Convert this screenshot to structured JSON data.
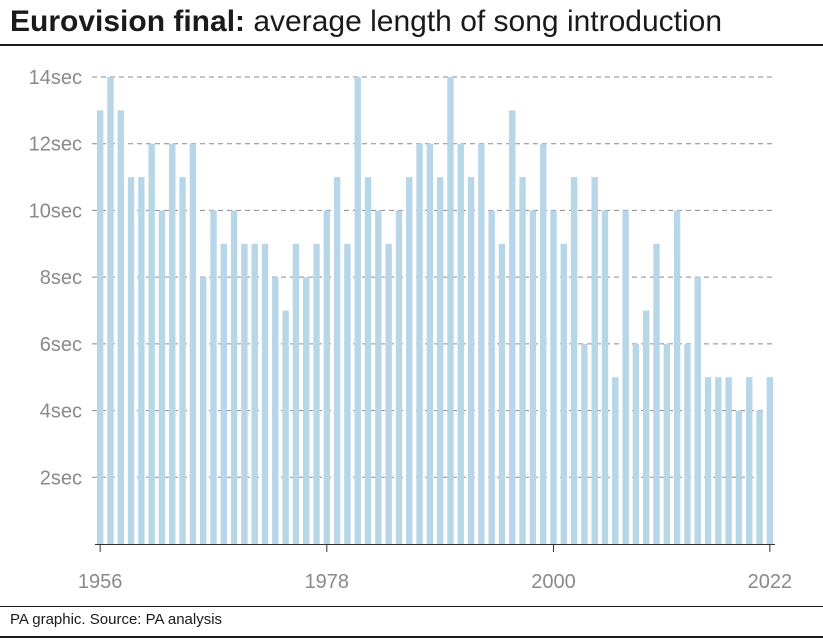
{
  "title": {
    "bold": "Eurovision final:",
    "rest": "average length of song introduction"
  },
  "footer": "PA graphic. Source: PA analysis",
  "colors": {
    "bar": "#b7d6e8",
    "grid": "#8a8a8a",
    "axis": "#333333",
    "tick_label": "#8a8a8a"
  },
  "chart_data": {
    "type": "bar",
    "title": "Eurovision final: average length of song introduction",
    "xlabel": "",
    "ylabel": "",
    "ylim": [
      0,
      14
    ],
    "y_ticks": [
      2,
      4,
      6,
      8,
      10,
      12,
      14
    ],
    "y_tick_labels": [
      "2sec",
      "4sec",
      "6sec",
      "8sec",
      "10sec",
      "12sec",
      "14sec"
    ],
    "x_tick_labels": [
      "1956",
      "1978",
      "2000",
      "2022"
    ],
    "grid": "dashed horizontal",
    "categories": [
      "1956",
      "1957",
      "1958",
      "1959",
      "1960",
      "1961",
      "1962",
      "1963",
      "1964",
      "1965",
      "1966",
      "1967",
      "1968",
      "1969",
      "1970",
      "1971",
      "1972",
      "1973",
      "1974",
      "1975",
      "1976",
      "1977",
      "1978",
      "1979",
      "1980",
      "1981",
      "1982",
      "1983",
      "1984",
      "1985",
      "1986",
      "1987",
      "1988",
      "1989",
      "1990",
      "1991",
      "1992",
      "1993",
      "1994",
      "1995",
      "1996",
      "1997",
      "1998",
      "1999",
      "2000",
      "2001",
      "2002",
      "2003",
      "2004",
      "2005",
      "2006",
      "2007",
      "2008",
      "2009",
      "2010",
      "2011",
      "2012",
      "2013",
      "2014",
      "2015",
      "2016",
      "2017",
      "2018",
      "2019",
      "2021",
      "2022"
    ],
    "values": [
      13,
      14,
      13,
      11,
      11,
      12,
      10,
      12,
      11,
      12,
      8,
      10,
      9,
      10,
      9,
      9,
      9,
      8,
      7,
      9,
      8,
      9,
      10,
      11,
      9,
      14,
      11,
      10,
      9,
      10,
      11,
      12,
      12,
      11,
      14,
      12,
      11,
      12,
      10,
      9,
      13,
      11,
      10,
      12,
      10,
      9,
      11,
      6,
      11,
      10,
      5,
      10,
      6,
      7,
      9,
      6,
      10,
      6,
      8,
      5,
      5,
      5,
      4,
      5,
      4,
      5
    ]
  }
}
